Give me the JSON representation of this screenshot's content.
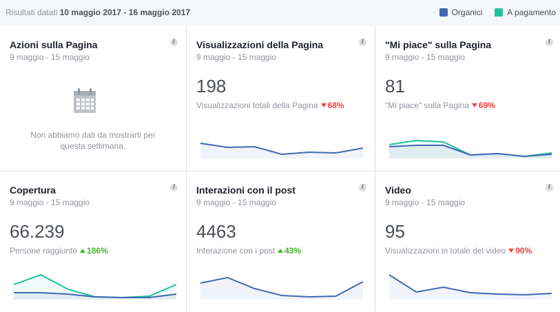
{
  "header": {
    "range_prefix": "Risultati datati",
    "range_dates": "10 maggio 2017 - 16 maggio 2017",
    "legend": [
      {
        "label": "Organici",
        "color": "#4267b2"
      },
      {
        "label": "A pagamento",
        "color": "#20c0a0"
      }
    ]
  },
  "cards": {
    "azioni": {
      "title": "Azioni sulla Pagina",
      "date": "9 maggio - 15 maggio",
      "empty_text": "Non abbiamo dati da mostrarti per questa settimana.",
      "icon": "calendar-icon"
    },
    "visualizzazioni": {
      "title": "Visualizzazioni della Pagina",
      "date": "9 maggio - 15 maggio",
      "value": "198",
      "sub": "Visualizzazioni totali della Pagina",
      "change": "68%",
      "direction": "down",
      "organic": [
        22,
        16,
        17,
        6,
        9,
        8,
        15
      ],
      "paid": []
    },
    "mipiace": {
      "title": "\"Mi piace\" sulla Pagina",
      "date": "9 maggio - 15 maggio",
      "value": "81",
      "sub": "\"Mi piace\" sulla Pagina",
      "change": "69%",
      "direction": "down",
      "organic": [
        17,
        19,
        19,
        5,
        7,
        3,
        6
      ],
      "paid": [
        20,
        26,
        24,
        5,
        7,
        3,
        8
      ]
    },
    "copertura": {
      "title": "Copertura",
      "date": "9 maggio - 15 maggio",
      "value": "66.239",
      "sub": "Persone raggiunte",
      "change": "186%",
      "direction": "up",
      "organic": [
        10,
        10,
        8,
        4,
        3,
        3,
        8
      ],
      "paid": [
        22,
        36,
        15,
        4,
        3,
        5,
        22
      ]
    },
    "interazioni": {
      "title": "Interazioni con il post",
      "date": "9 maggio - 15 maggio",
      "value": "4463",
      "sub": "Interazione con i post",
      "change": "43%",
      "direction": "up",
      "organic": [
        24,
        32,
        16,
        6,
        4,
        5,
        26
      ],
      "paid": []
    },
    "video": {
      "title": "Video",
      "date": "9 maggio - 15 maggio",
      "value": "95",
      "sub": "Visualizzazioni in totale del video",
      "change": "90%",
      "direction": "down",
      "organic": [
        36,
        11,
        18,
        10,
        8,
        7,
        9
      ],
      "paid": []
    }
  },
  "spark_max": 40
}
